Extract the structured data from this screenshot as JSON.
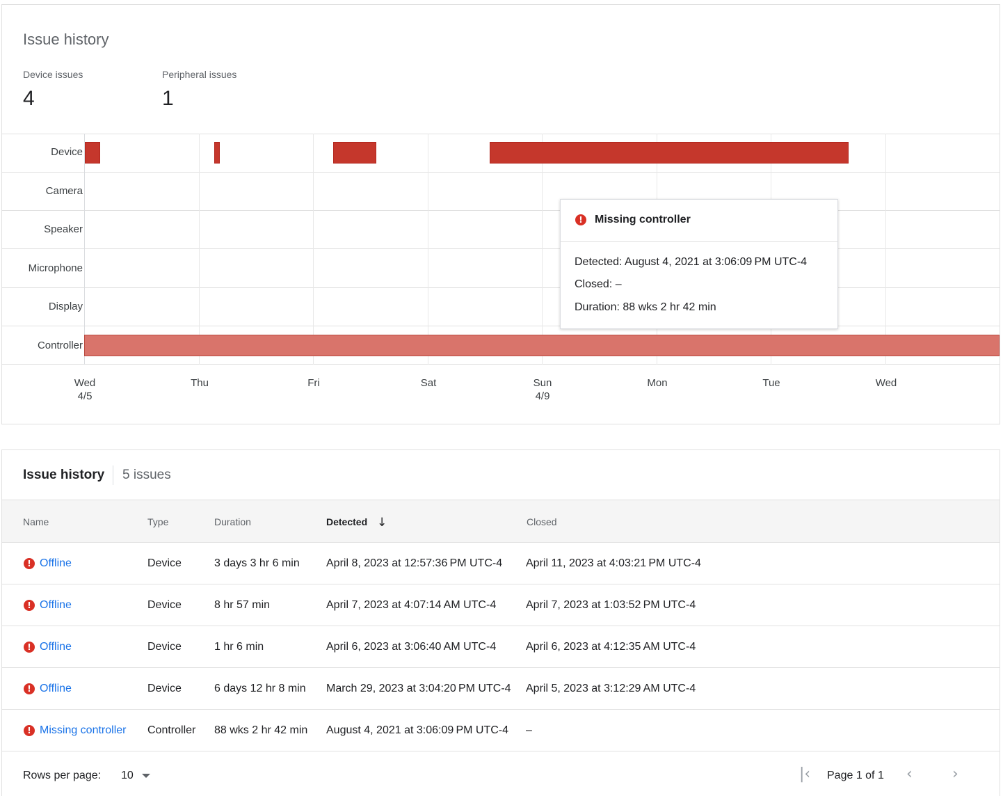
{
  "summary": {
    "title": "Issue history",
    "device_issues_label": "Device issues",
    "device_issues_value": "4",
    "peripheral_issues_label": "Peripheral issues",
    "peripheral_issues_value": "1"
  },
  "timeline": {
    "rows": [
      "Device",
      "Camera",
      "Speaker",
      "Microphone",
      "Display",
      "Controller"
    ],
    "ticks": [
      {
        "day": "Wed",
        "date": "4/5"
      },
      {
        "day": "Thu",
        "date": ""
      },
      {
        "day": "Fri",
        "date": ""
      },
      {
        "day": "Sat",
        "date": ""
      },
      {
        "day": "Sun",
        "date": "4/9"
      },
      {
        "day": "Mon",
        "date": ""
      },
      {
        "day": "Tue",
        "date": ""
      },
      {
        "day": "Wed",
        "date": ""
      }
    ],
    "colors": {
      "device_bar": "#c5372c",
      "controller_bar": "#d9746b"
    }
  },
  "tooltip": {
    "title": "Missing controller",
    "detected": "Detected: August 4, 2021 at 3:06:09 PM UTC-4",
    "closed": "Closed: –",
    "duration": "Duration: 88 wks 2 hr 42 min",
    "icon": "error-icon"
  },
  "table": {
    "title": "Issue history",
    "count": "5 issues",
    "columns": {
      "name": "Name",
      "type": "Type",
      "duration": "Duration",
      "detected": "Detected",
      "closed": "Closed"
    },
    "sort_icon": "arrow-down-icon",
    "rows": [
      {
        "name": "Offline",
        "type": "Device",
        "duration": "3 days 3 hr 6 min",
        "detected": "April 8, 2023 at 12:57:36 PM UTC-4",
        "closed": "April 11, 2023 at 4:03:21 PM UTC-4"
      },
      {
        "name": "Offline",
        "type": "Device",
        "duration": "8 hr 57 min",
        "detected": "April 7, 2023 at 4:07:14 AM UTC-4",
        "closed": "April 7, 2023 at 1:03:52 PM UTC-4"
      },
      {
        "name": "Offline",
        "type": "Device",
        "duration": "1 hr 6 min",
        "detected": "April 6, 2023 at 3:06:40 AM UTC-4",
        "closed": "April 6, 2023 at 4:12:35 AM UTC-4"
      },
      {
        "name": "Offline",
        "type": "Device",
        "duration": "6 days 12 hr 8 min",
        "detected": "March 29, 2023 at 3:04:20 PM UTC-4",
        "closed": "April 5, 2023 at 3:12:29 AM UTC-4"
      },
      {
        "name": "Missing controller",
        "type": "Controller",
        "duration": "88 wks 2 hr 42 min",
        "detected": "August 4, 2021 at 3:06:09 PM UTC-4",
        "closed": "–"
      }
    ],
    "link_color": "#1a73e8",
    "error_color": "#d93025"
  },
  "pagination": {
    "rows_per_page_label": "Rows per page:",
    "rows_per_page_value": "10",
    "page_label": "Page 1 of 1",
    "first_icon": "first-page-icon",
    "prev_icon": "chevron-left-icon",
    "next_icon": "chevron-right-icon"
  }
}
